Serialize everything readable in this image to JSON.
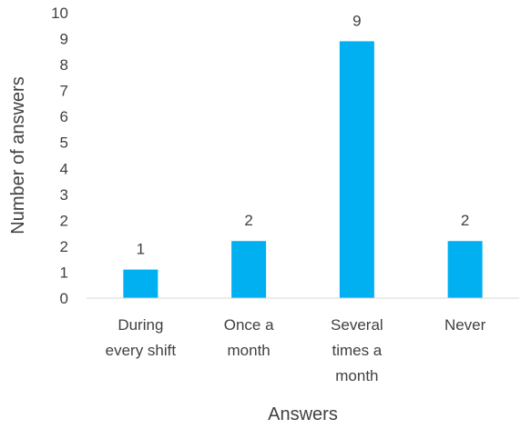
{
  "chart_data": {
    "type": "bar",
    "categories": [
      [
        "During",
        "every shift"
      ],
      [
        "Once a",
        "month"
      ],
      [
        "Several",
        "times a",
        "month"
      ],
      [
        "Never"
      ]
    ],
    "values": [
      1,
      2,
      9,
      2
    ],
    "data_labels": [
      "1",
      "2",
      "9",
      "2"
    ],
    "y_tick_labels": [
      "0",
      "1",
      "2",
      "2",
      "3",
      "4",
      "5",
      "6",
      "7",
      "8",
      "9",
      "10"
    ],
    "xlabel": "Answers",
    "ylabel": "Number of answers",
    "ylim": [
      0,
      10
    ],
    "bar_color": "#00B0F0",
    "grid": false,
    "legend": "none"
  }
}
